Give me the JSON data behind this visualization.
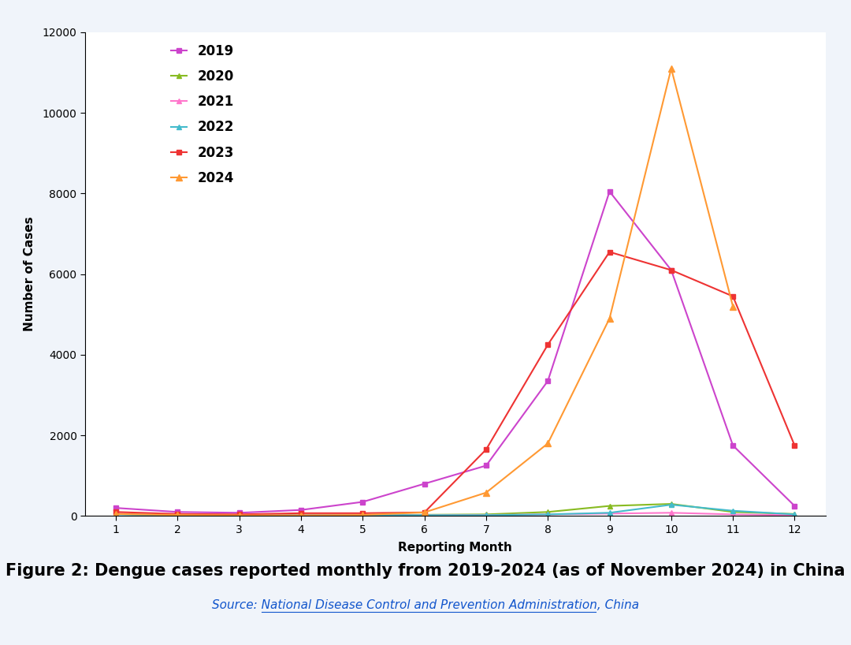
{
  "months": [
    1,
    2,
    3,
    4,
    5,
    6,
    7,
    8,
    9,
    10,
    11,
    12
  ],
  "series": [
    {
      "year": "2019",
      "values": [
        200,
        100,
        80,
        150,
        350,
        800,
        1250,
        3350,
        8050,
        6100,
        1750,
        250
      ],
      "color": "#cc44cc",
      "marker": "s",
      "markersize": 5
    },
    {
      "year": "2020",
      "values": [
        50,
        25,
        20,
        25,
        25,
        30,
        40,
        100,
        250,
        300,
        100,
        50
      ],
      "color": "#88bb22",
      "marker": "^",
      "markersize": 5
    },
    {
      "year": "2021",
      "values": [
        60,
        30,
        20,
        20,
        20,
        20,
        25,
        40,
        60,
        80,
        40,
        20
      ],
      "color": "#ff77cc",
      "marker": "^",
      "markersize": 5
    },
    {
      "year": "2022",
      "values": [
        40,
        20,
        15,
        15,
        20,
        20,
        20,
        40,
        80,
        280,
        130,
        40
      ],
      "color": "#44bbcc",
      "marker": "^",
      "markersize": 5
    },
    {
      "year": "2023",
      "values": [
        100,
        50,
        40,
        70,
        70,
        90,
        1650,
        4250,
        6550,
        6100,
        5450,
        1750
      ],
      "color": "#ee3333",
      "marker": "s",
      "markersize": 5
    },
    {
      "year": "2024",
      "values": [
        50,
        25,
        15,
        15,
        25,
        90,
        580,
        1800,
        4900,
        11100,
        5200,
        null
      ],
      "color": "#ff9933",
      "marker": "^",
      "markersize": 6
    }
  ],
  "title": "Figure 2: Dengue cases reported monthly from 2019-2024 (as of November 2024) in China",
  "source_prefix": "Source: ",
  "source_link_text": "National Disease Control and Prevention Administration",
  "source_suffix": ", China",
  "xlabel": "Reporting Month",
  "ylabel": "Number of Cases",
  "ylim": [
    0,
    12000
  ],
  "yticks": [
    0,
    2000,
    4000,
    6000,
    8000,
    10000,
    12000
  ],
  "xlim": [
    0.5,
    12.5
  ],
  "xticks": [
    1,
    2,
    3,
    4,
    5,
    6,
    7,
    8,
    9,
    10,
    11,
    12
  ],
  "bg_color": "#f0f4fa",
  "plot_bg_color": "#ffffff",
  "title_fontsize": 15,
  "axis_label_fontsize": 11,
  "tick_fontsize": 10,
  "legend_fontsize": 12
}
